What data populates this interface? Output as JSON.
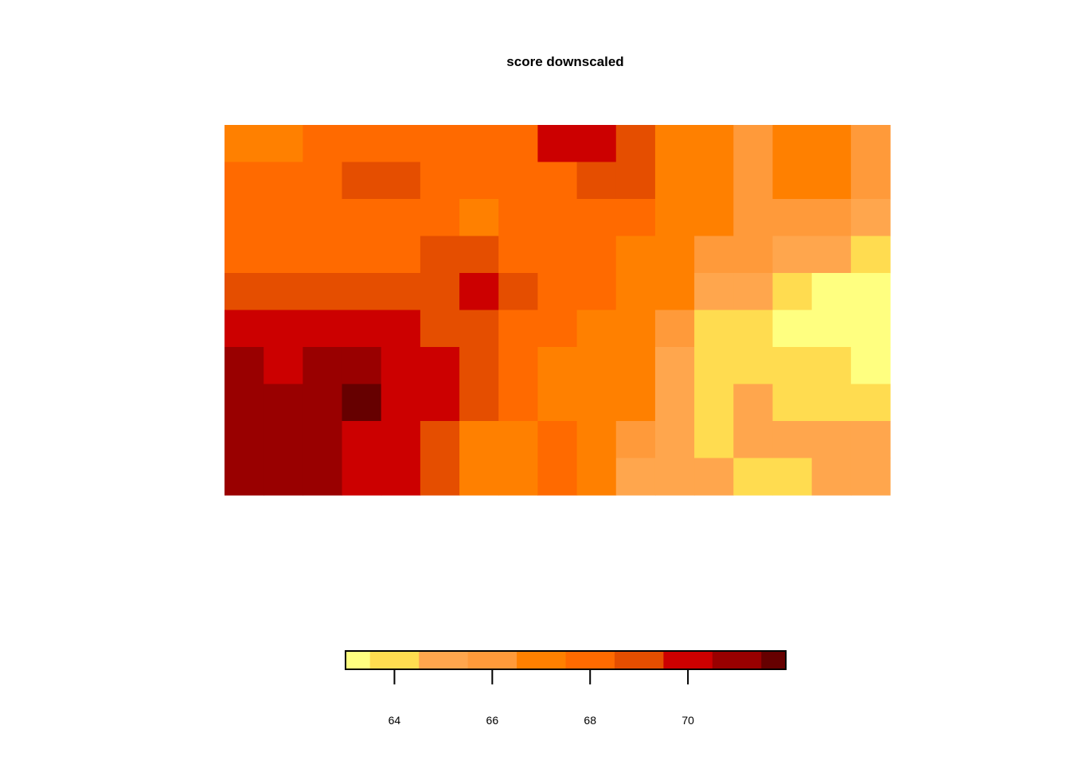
{
  "chart_data": {
    "type": "heatmap",
    "title": "score downscaled",
    "xlabel": "",
    "ylabel": "",
    "color_scale": {
      "breaks": [
        63.0,
        63.5,
        64.5,
        65.5,
        66.5,
        67.5,
        68.5,
        69.5,
        70.5,
        71.5,
        72.0
      ],
      "colors": [
        "#FFFF80",
        "#FFDC50",
        "#FFA64D",
        "#FF9A3A",
        "#FF8000",
        "#FF6A00",
        "#E54E00",
        "#CC0000",
        "#990000",
        "#660000"
      ],
      "ticks": [
        64,
        66,
        68,
        70
      ],
      "tick_labels": [
        "64",
        "66",
        "68",
        "70"
      ]
    },
    "grid": {
      "rows": 10,
      "cols": 17,
      "values": [
        [
          66.8,
          66.8,
          67.5,
          67.5,
          67.5,
          67.5,
          67.5,
          68.4,
          70.0,
          70.0,
          68.5,
          67.0,
          67.0,
          65.8,
          67.0,
          67.0,
          65.8
        ],
        [
          67.5,
          67.5,
          67.5,
          68.8,
          68.8,
          67.5,
          67.5,
          68.0,
          68.2,
          69.0,
          68.5,
          67.0,
          67.0,
          65.8,
          67.0,
          67.0,
          65.8
        ],
        [
          67.5,
          67.5,
          67.5,
          67.5,
          67.5,
          67.5,
          67.0,
          67.5,
          67.5,
          67.5,
          67.5,
          67.0,
          67.0,
          65.8,
          65.8,
          65.8,
          64.8
        ],
        [
          67.5,
          67.5,
          67.5,
          67.5,
          67.5,
          68.5,
          68.8,
          67.5,
          67.5,
          67.5,
          67.0,
          67.0,
          66.0,
          65.5,
          65.2,
          65.0,
          64.0
        ],
        [
          68.5,
          68.5,
          68.5,
          68.5,
          68.5,
          68.5,
          69.8,
          68.5,
          68.0,
          67.5,
          67.0,
          66.5,
          65.2,
          64.5,
          63.9,
          63.3,
          63.1
        ],
        [
          70.0,
          70.0,
          70.0,
          70.0,
          69.6,
          69.0,
          68.5,
          68.0,
          67.5,
          67.0,
          66.8,
          65.5,
          64.0,
          63.8,
          63.4,
          63.2,
          63.1
        ],
        [
          70.9,
          70.0,
          70.5,
          71.0,
          70.2,
          69.5,
          68.5,
          67.5,
          67.0,
          67.0,
          66.6,
          65.2,
          64.0,
          64.0,
          64.0,
          63.6,
          63.2
        ],
        [
          70.9,
          71.3,
          70.6,
          71.8,
          70.4,
          69.6,
          68.5,
          67.5,
          67.0,
          67.0,
          66.5,
          65.0,
          64.0,
          64.6,
          64.4,
          64.0,
          63.8
        ],
        [
          70.9,
          70.9,
          70.9,
          70.0,
          70.0,
          68.8,
          67.2,
          66.8,
          67.8,
          66.5,
          65.5,
          64.8,
          64.0,
          64.8,
          64.9,
          64.8,
          64.8
        ],
        [
          70.9,
          70.9,
          70.9,
          70.0,
          69.5,
          68.5,
          67.0,
          66.8,
          67.5,
          66.8,
          65.0,
          64.8,
          64.5,
          64.0,
          64.0,
          64.8,
          64.8
        ]
      ]
    }
  }
}
